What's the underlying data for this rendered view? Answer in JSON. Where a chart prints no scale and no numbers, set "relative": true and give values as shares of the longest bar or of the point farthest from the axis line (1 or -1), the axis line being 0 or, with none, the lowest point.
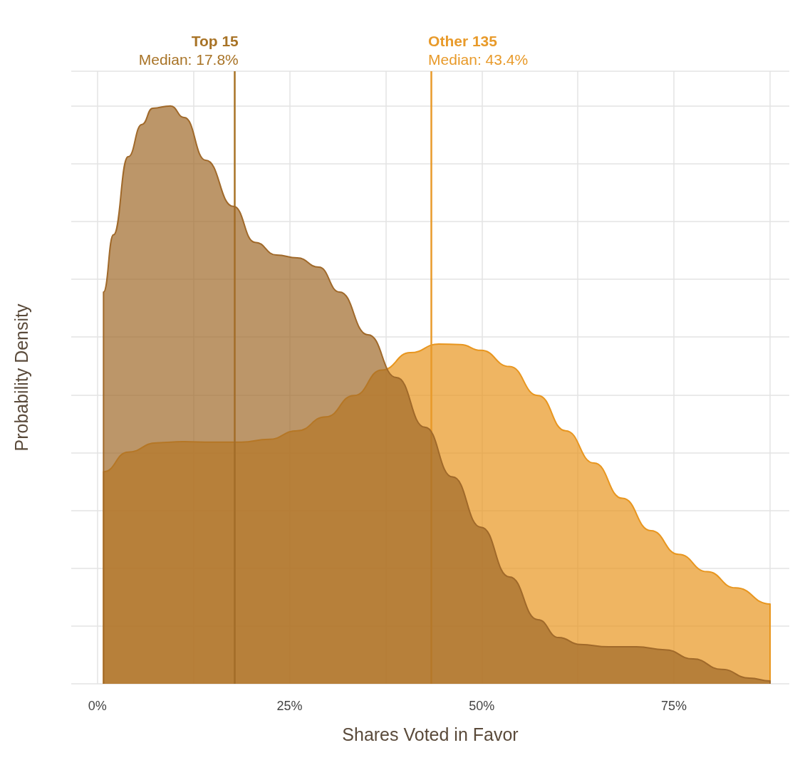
{
  "chart_data": {
    "type": "area",
    "xlabel": "Shares Voted in Favor",
    "ylabel": "Probability Density",
    "relative": true,
    "grid": true,
    "xlim": [
      -3.4,
      90
    ],
    "xticks": [
      {
        "value": 0,
        "label": "0%"
      },
      {
        "value": 12.5,
        "label": null
      },
      {
        "value": 25,
        "label": "25%"
      },
      {
        "value": 37.5,
        "label": null
      },
      {
        "value": 50,
        "label": "50%"
      },
      {
        "value": 62.5,
        "label": null
      },
      {
        "value": 75,
        "label": "75%"
      },
      {
        "value": 87.5,
        "label": null
      }
    ],
    "series": [
      {
        "color": "#a0692a",
        "x": [
          0.8,
          0.8,
          2.1,
          4.0,
          5.8,
          7.2,
          9.5,
          11.3,
          14.1,
          17.7,
          20.5,
          23.3,
          26.0,
          28.8,
          31.5,
          35.2,
          38.9,
          42.6,
          46.2,
          49.9,
          53.6,
          57.3,
          60.0,
          62.8,
          66.5,
          70.1,
          73.8,
          77.5,
          81.2,
          84.8,
          87.5,
          87.5
        ],
        "values": [
          0,
          0.678,
          0.777,
          0.912,
          0.968,
          0.996,
          1,
          0.98,
          0.906,
          0.826,
          0.764,
          0.742,
          0.737,
          0.721,
          0.678,
          0.604,
          0.53,
          0.444,
          0.358,
          0.271,
          0.185,
          0.111,
          0.08,
          0.068,
          0.064,
          0.064,
          0.059,
          0.043,
          0.025,
          0.01,
          0.005,
          0
        ]
      },
      {
        "color": "#e8961f",
        "x": [
          0.8,
          0.8,
          4.0,
          7.7,
          11.3,
          15.0,
          18.7,
          22.3,
          26.0,
          29.7,
          33.4,
          37.0,
          40.7,
          44.4,
          47.2,
          49.9,
          53.6,
          57.3,
          60.9,
          64.6,
          68.3,
          72.0,
          75.6,
          79.3,
          83.0,
          87.5,
          87.5
        ],
        "values": [
          0,
          0.367,
          0.401,
          0.417,
          0.419,
          0.418,
          0.418,
          0.423,
          0.438,
          0.462,
          0.499,
          0.543,
          0.573,
          0.588,
          0.587,
          0.577,
          0.549,
          0.499,
          0.438,
          0.382,
          0.321,
          0.265,
          0.224,
          0.194,
          0.166,
          0.138,
          0
        ]
      }
    ],
    "ref_lines": [
      {
        "axis": "x",
        "value": 17.8,
        "label": "Top 15\nMedian: 17.8%",
        "color": "#a87326"
      },
      {
        "axis": "x",
        "value": 43.4,
        "label": "Other 135\nMedian: 43.4%",
        "color": "#e89a2a"
      }
    ]
  }
}
